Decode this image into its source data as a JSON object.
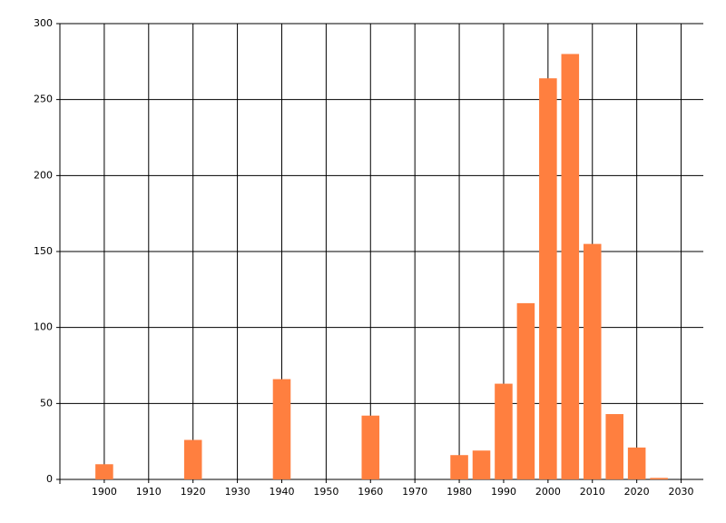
{
  "chart_data": {
    "type": "bar",
    "x": [
      1900,
      1920,
      1940,
      1960,
      1980,
      1985,
      1990,
      1995,
      2000,
      2005,
      2010,
      2015,
      2020,
      2025
    ],
    "values": [
      10,
      26,
      66,
      42,
      16,
      19,
      63,
      116,
      264,
      280,
      155,
      43,
      21,
      1
    ],
    "color": "#ff7f3f",
    "bar_width": 4,
    "xlim": [
      1890,
      2035
    ],
    "xticks": [
      1900,
      1910,
      1920,
      1930,
      1940,
      1950,
      1960,
      1970,
      1980,
      1990,
      2000,
      2010,
      2020,
      2030
    ],
    "ylim": [
      0,
      300
    ],
    "yticks": [
      0,
      50,
      100,
      150,
      200,
      250,
      300
    ],
    "grid": true
  }
}
